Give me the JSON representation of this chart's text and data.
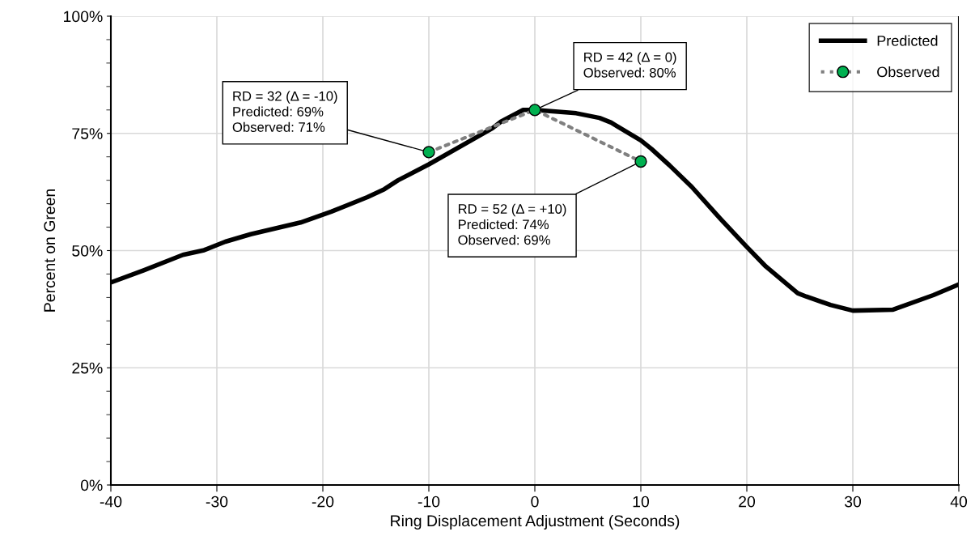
{
  "chart_data": {
    "type": "line",
    "xlabel": "Ring Displacement Adjustment (Seconds)",
    "ylabel": "Percent on Green",
    "xlim": [
      -40,
      40
    ],
    "xticks": [
      -40,
      -30,
      -20,
      -10,
      0,
      10,
      20,
      30,
      40
    ],
    "ylim": [
      0,
      100
    ],
    "yticks": [
      {
        "value": 0,
        "label": "0%"
      },
      {
        "value": 25,
        "label": "25%"
      },
      {
        "value": 50,
        "label": "50%"
      },
      {
        "value": 75,
        "label": "75%"
      },
      {
        "value": 100,
        "label": "100%"
      }
    ],
    "grid": true,
    "legend": "top right",
    "series": [
      {
        "name": "Predicted",
        "color": "#000000",
        "marker": "none",
        "line_style": "solid",
        "x": [
          -40,
          -36.9,
          -33.2,
          -31.2,
          -29.2,
          -26.8,
          -22.1,
          -19.2,
          -15.8,
          -14.2,
          -12.9,
          -10,
          -4,
          -3.2,
          -1.1,
          0,
          3.9,
          6.1,
          7.2,
          10,
          11,
          12.7,
          14.8,
          17.5,
          19.9,
          21.8,
          24.8,
          25.6,
          27.9,
          30,
          33.8,
          37.6,
          40
        ],
        "values": [
          43.2,
          45.8,
          49.1,
          50.1,
          51.9,
          53.5,
          56.0,
          58.3,
          61.4,
          63.1,
          65.0,
          68.4,
          76.1,
          77.5,
          80.0,
          80.0,
          79.3,
          78.3,
          77.3,
          73.5,
          71.7,
          68.2,
          63.6,
          56.8,
          51.0,
          46.6,
          40.9,
          40.2,
          38.4,
          37.2,
          37.4,
          40.5,
          42.8
        ]
      },
      {
        "name": "Observed",
        "color": "#808080",
        "colors": [
          "#00b050",
          "#00b050",
          "#00b050"
        ],
        "marker": "circle",
        "line_style": "dotted",
        "x": [
          -10,
          0,
          10
        ],
        "values": [
          71,
          80,
          69
        ]
      }
    ],
    "annotations": [
      {
        "text": "RD = 32 (Δ = -10)\nPredicted: 69%\nObserved: 71%",
        "x": -10,
        "y": 71
      },
      {
        "text": "RD = 42 (Δ = 0)\nObserved: 80%",
        "x": 0,
        "y": 80
      },
      {
        "text": "RD = 52 (Δ = +10)\nPredicted: 74%\nObserved: 69%",
        "x": 10,
        "y": 69
      }
    ]
  }
}
